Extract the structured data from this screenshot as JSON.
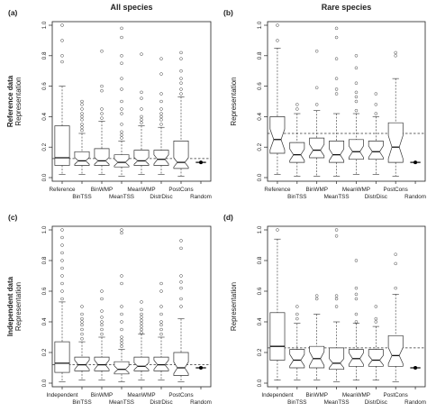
{
  "figure": {
    "col_titles": [
      "All species",
      "Rare species"
    ],
    "row_titles": [
      "Reference data",
      "Independent data"
    ]
  },
  "chart_data": [
    {
      "type": "boxplot",
      "panel": "(a)",
      "ylabel": "Representation",
      "ylim": [
        0,
        1.0
      ],
      "yticks": [
        0.0,
        0.2,
        0.4,
        0.6,
        0.8,
        1.0
      ],
      "categories": [
        "Reference",
        "BinTSS",
        "BinWMP",
        "MeanTSS",
        "MeanWMP",
        "DistrDisc",
        "PostCons",
        "Random"
      ],
      "boxes": [
        {
          "q1": 0.08,
          "median": 0.13,
          "q3": 0.34,
          "whisker_low": 0.02,
          "whisker_high": 0.6,
          "notch": false,
          "outliers": [
            0.76,
            0.8,
            0.9,
            1.0
          ]
        },
        {
          "q1": 0.08,
          "median": 0.11,
          "q3": 0.17,
          "whisker_low": 0.02,
          "whisker_high": 0.29,
          "notch": true,
          "outliers": [
            0.31,
            0.33,
            0.35,
            0.38,
            0.4,
            0.42,
            0.45,
            0.48,
            0.5
          ]
        },
        {
          "q1": 0.08,
          "median": 0.11,
          "q3": 0.19,
          "whisker_low": 0.02,
          "whisker_high": 0.37,
          "notch": true,
          "outliers": [
            0.39,
            0.42,
            0.45,
            0.57,
            0.6,
            0.83
          ]
        },
        {
          "q1": 0.07,
          "median": 0.1,
          "q3": 0.15,
          "whisker_low": 0.01,
          "whisker_high": 0.24,
          "notch": true,
          "outliers": [
            0.26,
            0.28,
            0.3,
            0.35,
            0.42,
            0.45,
            0.5,
            0.58,
            0.65,
            0.75,
            0.8,
            0.92,
            0.98
          ]
        },
        {
          "q1": 0.08,
          "median": 0.11,
          "q3": 0.18,
          "whisker_low": 0.02,
          "whisker_high": 0.34,
          "notch": true,
          "outliers": [
            0.36,
            0.38,
            0.4,
            0.45,
            0.52,
            0.56,
            0.81
          ]
        },
        {
          "q1": 0.08,
          "median": 0.12,
          "q3": 0.18,
          "whisker_low": 0.02,
          "whisker_high": 0.33,
          "notch": true,
          "outliers": [
            0.35,
            0.38,
            0.4,
            0.42,
            0.45,
            0.5,
            0.55,
            0.68,
            0.78
          ]
        },
        {
          "q1": 0.06,
          "median": 0.1,
          "q3": 0.24,
          "whisker_low": 0.01,
          "whisker_high": 0.53,
          "notch": true,
          "outliers": [
            0.55,
            0.58,
            0.62,
            0.65,
            0.7,
            0.78,
            0.82
          ]
        },
        {
          "median": 0.1,
          "point": true
        }
      ],
      "reference_line": 0.125
    },
    {
      "type": "boxplot",
      "panel": "(b)",
      "ylabel": "Representation",
      "ylim": [
        0,
        1.0
      ],
      "yticks": [
        0.0,
        0.2,
        0.4,
        0.6,
        0.8,
        1.0
      ],
      "categories": [
        "Reference",
        "BinTSS",
        "BinWMP",
        "MeanTSS",
        "MeanWMP",
        "DistrDisc",
        "PostCons",
        "Random"
      ],
      "boxes": [
        {
          "q1": 0.16,
          "median": 0.25,
          "q3": 0.4,
          "whisker_low": 0.02,
          "whisker_high": 0.85,
          "notch": true,
          "outliers": [
            0.9,
            1.0
          ]
        },
        {
          "q1": 0.1,
          "median": 0.15,
          "q3": 0.23,
          "whisker_low": 0.01,
          "whisker_high": 0.42,
          "notch": true,
          "outliers": [
            0.45,
            0.48
          ]
        },
        {
          "q1": 0.13,
          "median": 0.18,
          "q3": 0.26,
          "whisker_low": 0.01,
          "whisker_high": 0.44,
          "notch": true,
          "outliers": [
            0.48,
            0.59,
            0.83
          ]
        },
        {
          "q1": 0.1,
          "median": 0.15,
          "q3": 0.24,
          "whisker_low": 0.01,
          "whisker_high": 0.42,
          "notch": true,
          "outliers": [
            0.55,
            0.58,
            0.65,
            0.78,
            0.92,
            0.98
          ]
        },
        {
          "q1": 0.12,
          "median": 0.17,
          "q3": 0.25,
          "whisker_low": 0.02,
          "whisker_high": 0.42,
          "notch": true,
          "outliers": [
            0.44,
            0.5,
            0.53,
            0.56,
            0.62,
            0.72,
            0.8
          ]
        },
        {
          "q1": 0.12,
          "median": 0.17,
          "q3": 0.24,
          "whisker_low": 0.02,
          "whisker_high": 0.4,
          "notch": true,
          "outliers": [
            0.42,
            0.48,
            0.55
          ]
        },
        {
          "q1": 0.1,
          "median": 0.2,
          "q3": 0.36,
          "whisker_low": 0.01,
          "whisker_high": 0.65,
          "notch": true,
          "outliers": [
            0.8,
            0.82
          ]
        },
        {
          "median": 0.1,
          "point": true
        }
      ],
      "reference_line": 0.29
    },
    {
      "type": "boxplot",
      "panel": "(c)",
      "ylabel": "Representation",
      "ylim": [
        0,
        1.0
      ],
      "yticks": [
        0.0,
        0.2,
        0.4,
        0.6,
        0.8,
        1.0
      ],
      "categories": [
        "Independent",
        "BinTSS",
        "BinWMP",
        "MeanTSS",
        "MeanWMP",
        "DistrDisc",
        "PostCons",
        "Random"
      ],
      "boxes": [
        {
          "q1": 0.07,
          "median": 0.13,
          "q3": 0.27,
          "whisker_low": 0.01,
          "whisker_high": 0.53,
          "notch": false,
          "outliers": [
            0.55,
            0.6,
            0.65,
            0.7,
            0.75,
            0.8,
            0.85,
            0.9,
            0.95,
            1.0
          ]
        },
        {
          "q1": 0.08,
          "median": 0.12,
          "q3": 0.17,
          "whisker_low": 0.02,
          "whisker_high": 0.27,
          "notch": true,
          "outliers": [
            0.29,
            0.32,
            0.35,
            0.38,
            0.4,
            0.42,
            0.45,
            0.5
          ]
        },
        {
          "q1": 0.08,
          "median": 0.12,
          "q3": 0.17,
          "whisker_low": 0.02,
          "whisker_high": 0.3,
          "notch": true,
          "outliers": [
            0.32,
            0.35,
            0.38,
            0.4,
            0.43,
            0.47,
            0.55,
            0.6
          ]
        },
        {
          "q1": 0.06,
          "median": 0.09,
          "q3": 0.14,
          "whisker_low": 0.01,
          "whisker_high": 0.22,
          "notch": true,
          "outliers": [
            0.24,
            0.26,
            0.28,
            0.3,
            0.35,
            0.4,
            0.45,
            0.5,
            0.65,
            0.7,
            0.98,
            1.0
          ]
        },
        {
          "q1": 0.08,
          "median": 0.11,
          "q3": 0.17,
          "whisker_low": 0.02,
          "whisker_high": 0.32,
          "notch": true,
          "outliers": [
            0.33,
            0.35,
            0.37,
            0.39,
            0.41,
            0.43,
            0.45,
            0.48,
            0.53
          ]
        },
        {
          "q1": 0.08,
          "median": 0.12,
          "q3": 0.17,
          "whisker_low": 0.02,
          "whisker_high": 0.3,
          "notch": true,
          "outliers": [
            0.32,
            0.35,
            0.38,
            0.4,
            0.45,
            0.5,
            0.6,
            0.65
          ]
        },
        {
          "q1": 0.05,
          "median": 0.1,
          "q3": 0.2,
          "whisker_low": 0.01,
          "whisker_high": 0.42,
          "notch": true,
          "outliers": [
            0.5,
            0.55,
            0.62,
            0.66,
            0.7,
            0.88,
            0.93
          ]
        },
        {
          "median": 0.1,
          "point": true
        }
      ],
      "reference_line": 0.12
    },
    {
      "type": "boxplot",
      "panel": "(d)",
      "ylabel": "Representation",
      "ylim": [
        0,
        1.0
      ],
      "yticks": [
        0.0,
        0.2,
        0.4,
        0.6,
        0.8,
        1.0
      ],
      "categories": [
        "Independent",
        "BinTSS",
        "BinWMP",
        "MeanTSS",
        "MeanWMP",
        "DistrDisc",
        "PostCons",
        "Random"
      ],
      "boxes": [
        {
          "q1": 0.15,
          "median": 0.24,
          "q3": 0.46,
          "whisker_low": 0.02,
          "whisker_high": 0.94,
          "notch": false,
          "outliers": [
            1.0
          ]
        },
        {
          "q1": 0.1,
          "median": 0.15,
          "q3": 0.22,
          "whisker_low": 0.02,
          "whisker_high": 0.39,
          "notch": true,
          "outliers": [
            0.42,
            0.45,
            0.5
          ]
        },
        {
          "q1": 0.1,
          "median": 0.16,
          "q3": 0.24,
          "whisker_low": 0.02,
          "whisker_high": 0.45,
          "notch": true,
          "outliers": [
            0.55,
            0.57
          ]
        },
        {
          "q1": 0.09,
          "median": 0.13,
          "q3": 0.23,
          "whisker_low": 0.01,
          "whisker_high": 0.4,
          "notch": true,
          "outliers": [
            0.5,
            0.55,
            0.57,
            0.96,
            1.0
          ]
        },
        {
          "q1": 0.11,
          "median": 0.16,
          "q3": 0.22,
          "whisker_low": 0.02,
          "whisker_high": 0.39,
          "notch": true,
          "outliers": [
            0.4,
            0.45,
            0.55,
            0.58,
            0.62,
            0.8
          ]
        },
        {
          "q1": 0.11,
          "median": 0.15,
          "q3": 0.22,
          "whisker_low": 0.02,
          "whisker_high": 0.37,
          "notch": true,
          "outliers": [
            0.4,
            0.42,
            0.5
          ]
        },
        {
          "q1": 0.11,
          "median": 0.18,
          "q3": 0.31,
          "whisker_low": 0.01,
          "whisker_high": 0.58,
          "notch": true,
          "outliers": [
            0.62,
            0.78,
            0.84
          ]
        },
        {
          "median": 0.1,
          "point": true
        }
      ],
      "reference_line": 0.23
    }
  ]
}
